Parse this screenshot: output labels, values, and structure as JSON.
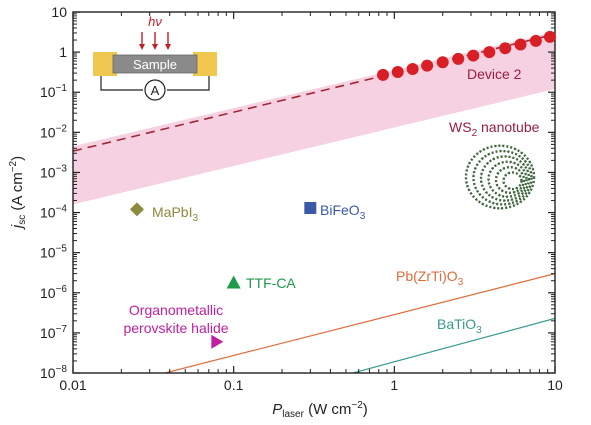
{
  "chart_data": {
    "type": "scatter",
    "xscale": "log",
    "yscale": "log",
    "xlim": [
      0.01,
      10
    ],
    "ylim": [
      1e-08,
      10
    ],
    "grid": false,
    "xlabel": {
      "main": "P",
      "sub": "laser",
      "unit": " (W cm",
      "unit_sup": "−2",
      "unit_end": ")"
    },
    "ylabel": {
      "main": "j",
      "sub": "sc",
      "unit": " (A cm",
      "unit_sup": "−2",
      "unit_end": ")"
    },
    "x_ticks": [
      {
        "value": 0.01,
        "label": "0.01"
      },
      {
        "value": 0.1,
        "label": "0.1"
      },
      {
        "value": 1,
        "label": "1"
      },
      {
        "value": 10,
        "label": "10"
      }
    ],
    "y_ticks": [
      {
        "value": 10,
        "base": "10",
        "exp": ""
      },
      {
        "value": 1,
        "base": "1",
        "exp": ""
      },
      {
        "value": 0.1,
        "base": "10",
        "exp": "−1"
      },
      {
        "value": 0.01,
        "base": "10",
        "exp": "−2"
      },
      {
        "value": 0.001,
        "base": "10",
        "exp": "−3"
      },
      {
        "value": 0.0001,
        "base": "10",
        "exp": "−4"
      },
      {
        "value": 1e-05,
        "base": "10",
        "exp": "−5"
      },
      {
        "value": 1e-06,
        "base": "10",
        "exp": "−6"
      },
      {
        "value": 1e-07,
        "base": "10",
        "exp": "−7"
      },
      {
        "value": 1e-08,
        "base": "10",
        "exp": "−8"
      }
    ],
    "series": [
      {
        "name": "Device 2",
        "color": "#d91f26",
        "marker": "circle",
        "x": [
          0.85,
          1.05,
          1.3,
          1.6,
          2.0,
          2.5,
          3.1,
          3.9,
          4.9,
          6.1,
          7.6,
          9.3
        ],
        "y": [
          0.27,
          0.32,
          0.38,
          0.46,
          0.56,
          0.68,
          0.82,
          1.0,
          1.25,
          1.55,
          1.9,
          2.4
        ]
      },
      {
        "name": "MaPbI₃",
        "color": "#8c8a3c",
        "marker": "diamond",
        "x": [
          0.025
        ],
        "y": [
          0.00012
        ]
      },
      {
        "name": "BiFeO₃",
        "color": "#3a5aa8",
        "marker": "square",
        "x": [
          0.3
        ],
        "y": [
          0.00013
        ]
      },
      {
        "name": "TTF-CA",
        "color": "#1e9a4a",
        "marker": "triangle-up",
        "x": [
          0.1
        ],
        "y": [
          1.8e-06
        ]
      },
      {
        "name": "Organometallic perovskite halide",
        "color": "#c020a0",
        "marker": "triangle-right",
        "x": [
          0.078
        ],
        "y": [
          6e-08
        ]
      }
    ],
    "lines": [
      {
        "name": "Device 2 fit",
        "style": "dashed",
        "color": "#a0283a",
        "x": [
          0.01,
          10
        ],
        "y": [
          0.0034,
          2.8
        ]
      },
      {
        "name": "Pb(ZrTi)O₃",
        "style": "solid",
        "color": "#e06a3a",
        "x": [
          0.03,
          10
        ],
        "y": [
          8e-09,
          3e-06
        ]
      },
      {
        "name": "BaTiO₃",
        "style": "solid",
        "color": "#3a9a90",
        "x": [
          0.45,
          10
        ],
        "y": [
          8e-09,
          2.3e-07
        ]
      }
    ],
    "band": {
      "color": "#f5c9dc",
      "x": [
        0.01,
        10
      ],
      "y_lower": [
        0.00016,
        0.12
      ],
      "y_upper": [
        0.0045,
        3.2
      ]
    },
    "annotations": [
      {
        "id": "device2",
        "text": "Device 2",
        "color": "#9a1e3c"
      },
      {
        "id": "ws2",
        "text": "WS",
        "sub": "2",
        "rest": " nanotube",
        "color": "#9a1e3c"
      },
      {
        "id": "mapbi3",
        "text": "MaPbI",
        "sub": "3",
        "color": "#8c8a3c"
      },
      {
        "id": "bifeo3",
        "text": "BiFeO",
        "sub": "3",
        "color": "#3a5aa8"
      },
      {
        "id": "ttfca",
        "text": "TTF-CA",
        "color": "#1e9a4a"
      },
      {
        "id": "organo1",
        "text": "Organometallic",
        "color": "#c020a0"
      },
      {
        "id": "organo2",
        "text": "perovskite halide",
        "color": "#c020a0"
      },
      {
        "id": "pzt",
        "text": "Pb(ZrTi)O",
        "sub": "3",
        "color": "#e06a3a"
      },
      {
        "id": "bto",
        "text": "BaTiO",
        "sub": "3",
        "color": "#3a9a90"
      }
    ],
    "inset": {
      "hv_label": "hν",
      "sample_label": "Sample",
      "ammeter_label": "A"
    },
    "colors": {
      "axis": "#222222",
      "hv_arrow": "#c0202a",
      "electrode": "#f0c850",
      "sample": "#8a8a8a"
    }
  }
}
